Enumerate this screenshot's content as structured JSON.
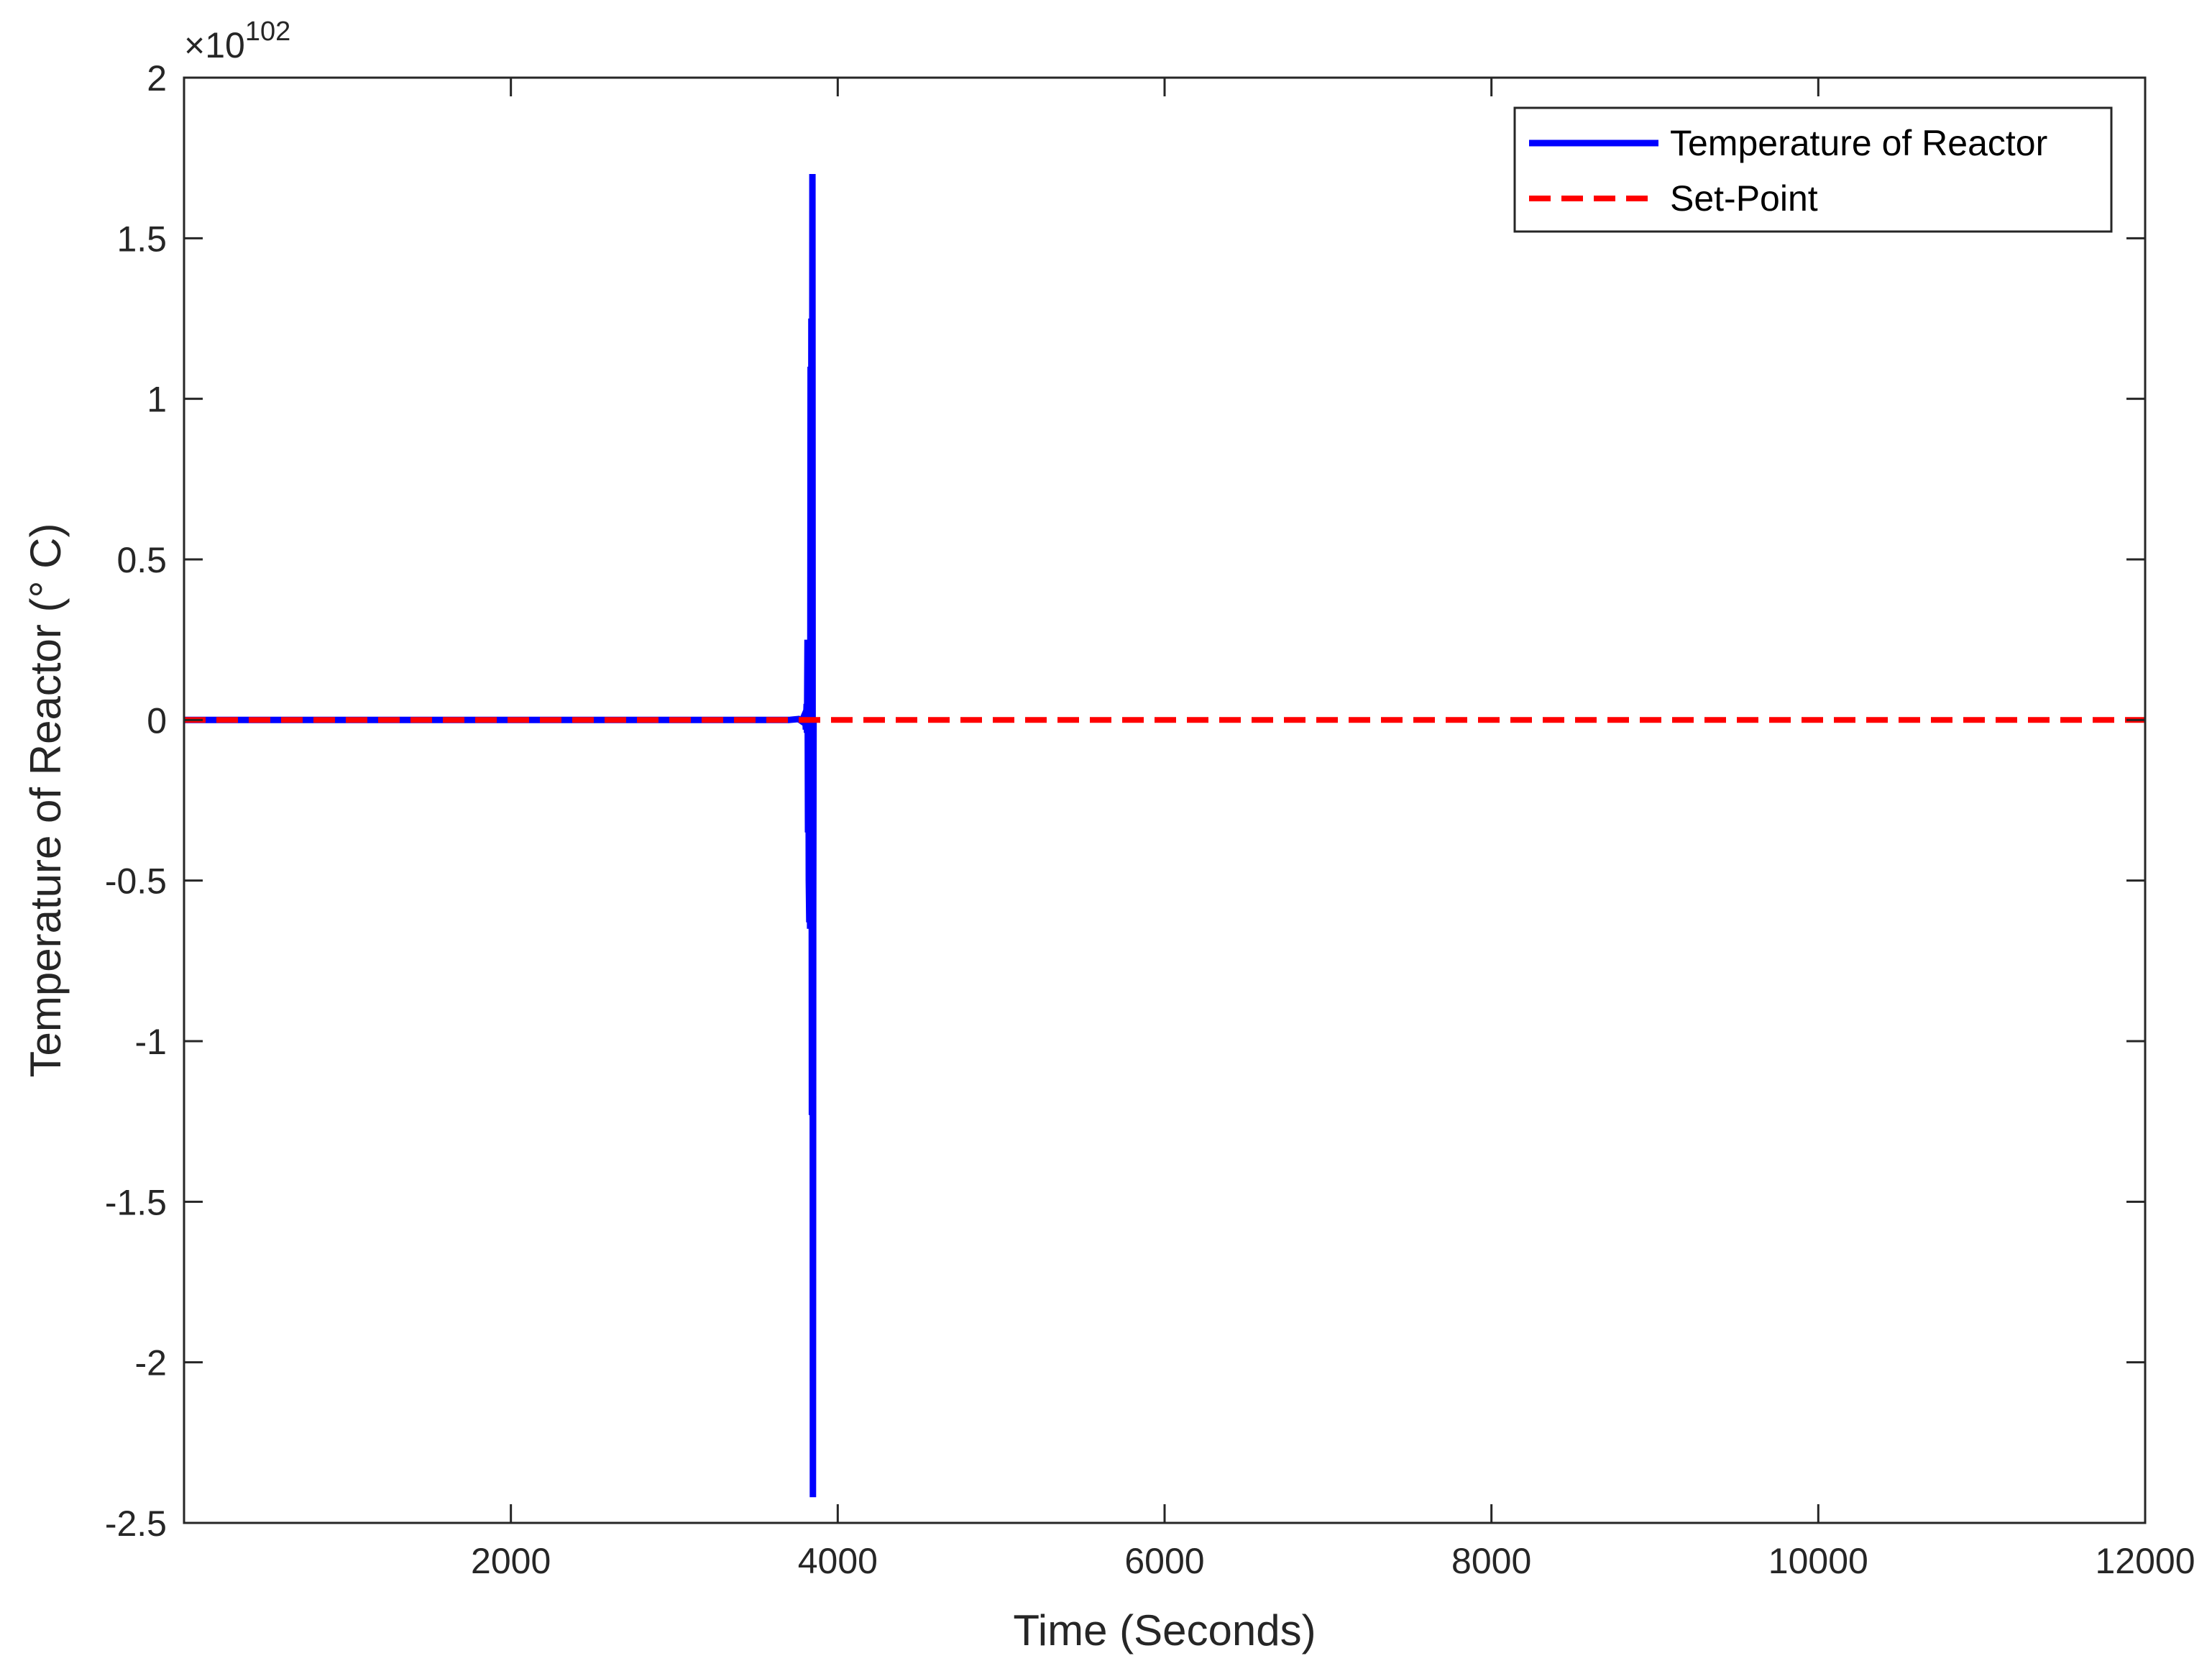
{
  "chart_data": {
    "type": "line",
    "title": "",
    "xlabel": "Time (Seconds)",
    "ylabel": "Temperature of Reactor (° C)",
    "xlim": [
      0,
      12000
    ],
    "ylim": [
      -2.5,
      2
    ],
    "xticks": [
      2000,
      4000,
      6000,
      8000,
      10000,
      12000
    ],
    "xtick_labels": [
      "2000",
      "4000",
      "6000",
      "8000",
      "10000",
      "12000"
    ],
    "yticks": [
      2,
      1.5,
      1,
      0.5,
      0,
      -0.5,
      -1,
      -1.5,
      -2,
      -2.5
    ],
    "ytick_labels": [
      "2",
      "1.5",
      "1",
      "0.5",
      "0",
      "-0.5",
      "-1",
      "-1.5",
      "-2",
      "-2.5"
    ],
    "y_multiplier": {
      "base": "×10",
      "exponent": "102"
    },
    "grid": false,
    "legend_position": "top-right",
    "series": [
      {
        "name": "Temperature of Reactor",
        "color": "#0000ff",
        "style": "solid",
        "x": [
          0,
          3700,
          3760,
          3780,
          3790,
          3795,
          3800,
          3805,
          3810,
          3812,
          3815,
          3818,
          3820,
          3823,
          3826,
          3828,
          3831,
          3834,
          3836,
          3839,
          3842,
          3845,
          3848,
          3850,
          3852
        ],
        "y": [
          0,
          0,
          0.003,
          -0.004,
          0.008,
          -0.012,
          0.018,
          -0.03,
          0.05,
          -0.04,
          0.25,
          -0.35,
          0.22,
          -0.5,
          -0.63,
          0.05,
          -0.65,
          1.1,
          -0.55,
          1.25,
          -1.23,
          1.7,
          -2.42,
          -0.62,
          0
        ]
      },
      {
        "name": "Set-Point",
        "color": "#ff0000",
        "style": "dashed",
        "x": [
          0,
          12000
        ],
        "y": [
          0,
          0
        ]
      }
    ]
  }
}
